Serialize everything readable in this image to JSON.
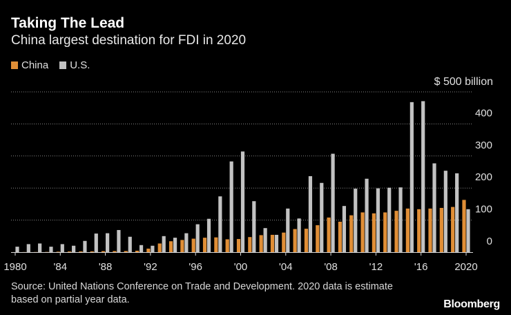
{
  "header": {
    "title": "Taking The Lead",
    "subtitle": "China largest destination for FDI in 2020"
  },
  "legend": [
    {
      "label": "China",
      "color": "#e08e36"
    },
    {
      "label": "U.S.",
      "color": "#c2c2c2"
    }
  ],
  "unit_label": "$ 500 billion",
  "footer": {
    "source": "Source: United Nations Conference on Trade and Development. 2020 data is estimate based on partial year data.",
    "brand": "Bloomberg"
  },
  "chart_data": {
    "type": "bar",
    "title": "Taking The Lead",
    "subtitle": "China largest destination for FDI in 2020",
    "xlabel": "",
    "ylabel": "$ billion",
    "ylim": [
      0,
      500
    ],
    "y_ticks": [
      0,
      100,
      200,
      300,
      400
    ],
    "y_tick_labels": [
      "0",
      "100",
      "200",
      "300",
      "400"
    ],
    "x_tick_labels": [
      {
        "year": 1980,
        "label": "1980"
      },
      {
        "year": 1984,
        "label": "'84"
      },
      {
        "year": 1988,
        "label": "'88"
      },
      {
        "year": 1992,
        "label": "'92"
      },
      {
        "year": 1996,
        "label": "'96"
      },
      {
        "year": 2000,
        "label": "'00"
      },
      {
        "year": 2004,
        "label": "'04"
      },
      {
        "year": 2008,
        "label": "'08"
      },
      {
        "year": 2012,
        "label": "'12"
      },
      {
        "year": 2016,
        "label": "'16"
      },
      {
        "year": 2020,
        "label": "2020"
      }
    ],
    "categories": [
      1980,
      1981,
      1982,
      1983,
      1984,
      1985,
      1986,
      1987,
      1988,
      1989,
      1990,
      1991,
      1992,
      1993,
      1994,
      1995,
      1996,
      1997,
      1998,
      1999,
      2000,
      2001,
      2002,
      2003,
      2004,
      2005,
      2006,
      2007,
      2008,
      2009,
      2010,
      2011,
      2012,
      2013,
      2014,
      2015,
      2016,
      2017,
      2018,
      2019,
      2020
    ],
    "series": [
      {
        "name": "China",
        "color": "#e08e36",
        "values": [
          0.1,
          0.3,
          0.4,
          0.6,
          1.3,
          2,
          2.2,
          2.3,
          3.2,
          3.4,
          3.5,
          4.4,
          11,
          27,
          34,
          38,
          42,
          45,
          46,
          40,
          41,
          47,
          53,
          54,
          61,
          72,
          73,
          84,
          108,
          95,
          115,
          124,
          121,
          124,
          129,
          136,
          134,
          136,
          138,
          141,
          163
        ]
      },
      {
        "name": "U.S.",
        "color": "#c2c2c2",
        "values": [
          17,
          25,
          27,
          17,
          25,
          20,
          35,
          58,
          59,
          69,
          48,
          22,
          20,
          50,
          45,
          59,
          87,
          104,
          174,
          283,
          314,
          159,
          75,
          54,
          136,
          105,
          237,
          216,
          307,
          144,
          198,
          229,
          199,
          201,
          202,
          468,
          471,
          277,
          254,
          246,
          134
        ]
      }
    ]
  }
}
